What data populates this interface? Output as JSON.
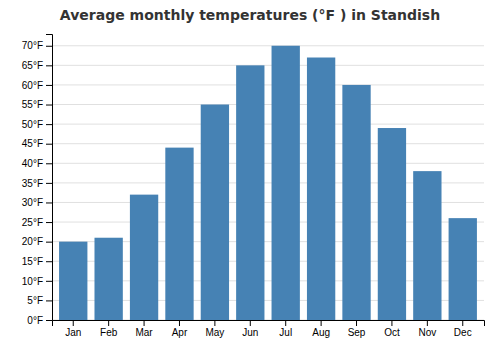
{
  "chart_data": {
    "type": "bar",
    "title": "Average monthly temperatures (°F ) in Standish",
    "categories": [
      "Jan",
      "Feb",
      "Mar",
      "Apr",
      "May",
      "Jun",
      "Jul",
      "Aug",
      "Sep",
      "Oct",
      "Nov",
      "Dec"
    ],
    "values": [
      20,
      21,
      32,
      44,
      55,
      65,
      70,
      67,
      60,
      49,
      38,
      26
    ],
    "ylim": [
      0,
      73
    ],
    "yticks": [
      {
        "value": 0,
        "label": "0°F"
      },
      {
        "value": 5,
        "label": "5°F"
      },
      {
        "value": 10,
        "label": "10°F"
      },
      {
        "value": 15,
        "label": "15°F"
      },
      {
        "value": 20,
        "label": "20°F"
      },
      {
        "value": 25,
        "label": "25°F"
      },
      {
        "value": 30,
        "label": "30°F"
      },
      {
        "value": 35,
        "label": "35°F"
      },
      {
        "value": 40,
        "label": "40°F"
      },
      {
        "value": 45,
        "label": "45°F"
      },
      {
        "value": 50,
        "label": "50°F"
      },
      {
        "value": 55,
        "label": "55°F"
      },
      {
        "value": 60,
        "label": "60°F"
      },
      {
        "value": 65,
        "label": "65°F"
      },
      {
        "value": 70,
        "label": "70°F"
      }
    ],
    "grid": true
  }
}
